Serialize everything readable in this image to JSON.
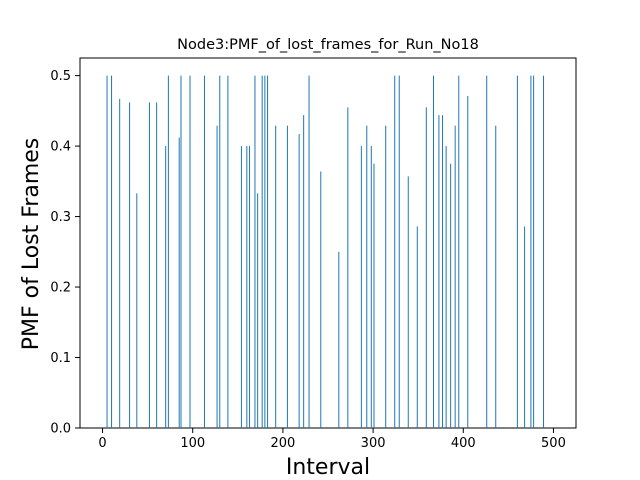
{
  "chart_data": {
    "type": "bar",
    "title": "Node3:PMF_of_lost_frames_for_Run_No18",
    "xlabel": "Interval",
    "ylabel": "PMF of Lost Frames",
    "xlim": [
      -25,
      525
    ],
    "ylim": [
      0,
      0.525
    ],
    "xticks": [
      0,
      100,
      200,
      300,
      400,
      500
    ],
    "yticks": [
      0.0,
      0.1,
      0.2,
      0.3,
      0.4,
      0.5
    ],
    "xtick_labels": [
      "0",
      "100",
      "200",
      "300",
      "400",
      "500"
    ],
    "ytick_labels": [
      "0.0",
      "0.1",
      "0.2",
      "0.3",
      "0.4",
      "0.5"
    ],
    "grid": false,
    "bar_color": "#1f77b4",
    "x": [
      5,
      10,
      19,
      30,
      38,
      52,
      60,
      70,
      73,
      85,
      87,
      97,
      113,
      127,
      130,
      139,
      154,
      160,
      163,
      169,
      172,
      177,
      180,
      183,
      192,
      205,
      218,
      223,
      229,
      242,
      262,
      272,
      287,
      293,
      298,
      301,
      314,
      324,
      329,
      339,
      349,
      359,
      367,
      373,
      377,
      381,
      386,
      391,
      395,
      405,
      426,
      436,
      460,
      468,
      475,
      478,
      489
    ],
    "values": [
      0.5,
      0.5,
      0.467,
      0.462,
      0.333,
      0.462,
      0.462,
      0.4,
      0.5,
      0.412,
      0.5,
      0.5,
      0.5,
      0.429,
      0.5,
      0.5,
      0.4,
      0.4,
      0.4,
      0.5,
      0.333,
      0.5,
      0.5,
      0.5,
      0.429,
      0.429,
      0.417,
      0.444,
      0.5,
      0.364,
      0.25,
      0.455,
      0.4,
      0.429,
      0.4,
      0.375,
      0.429,
      0.5,
      0.5,
      0.357,
      0.286,
      0.455,
      0.5,
      0.444,
      0.444,
      0.4,
      0.375,
      0.429,
      0.5,
      0.471,
      0.5,
      0.429,
      0.5,
      0.286,
      0.5,
      0.5,
      0.5
    ]
  }
}
